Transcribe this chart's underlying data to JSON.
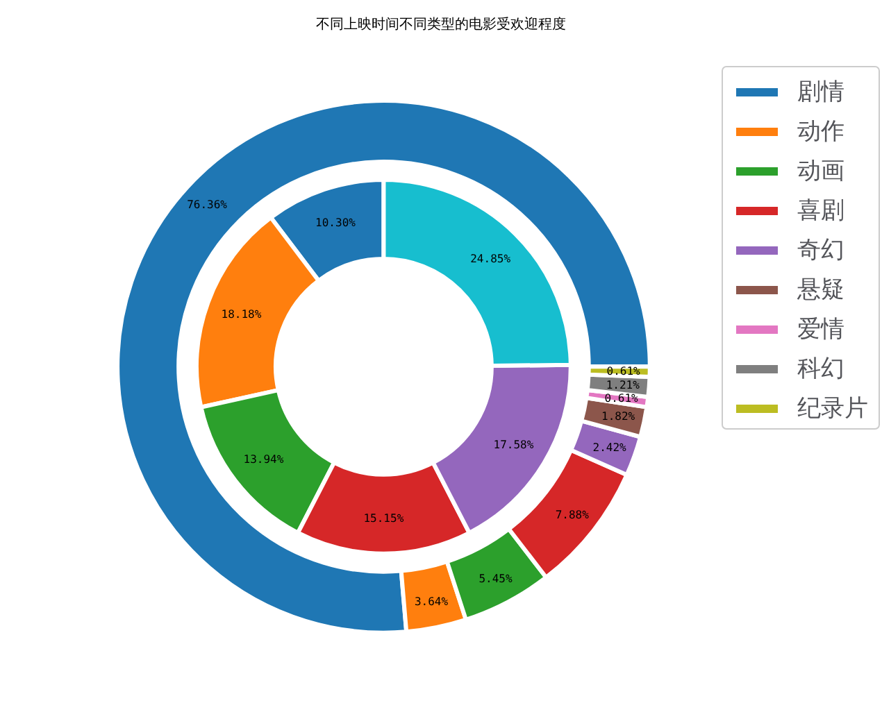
{
  "chart_data": [
    {
      "type": "donut",
      "title": "不同上映时间不同类型的电影受欢迎程度",
      "legend": "top right",
      "categories": [
        "剧情",
        "动作",
        "动画",
        "喜剧",
        "奇幻",
        "悬疑",
        "爱情",
        "科幻",
        "纪录片"
      ],
      "values": [
        76.36,
        3.64,
        5.45,
        7.88,
        2.42,
        1.82,
        0.61,
        1.21,
        0.61
      ],
      "colors": [
        "#1f77b4",
        "#ff7f0e",
        "#2ca02c",
        "#d62728",
        "#9467bd",
        "#8c564b",
        "#e377c2",
        "#7f7f7f",
        "#bcbd22"
      ],
      "value_labels": [
        "76.36%",
        "3.64%",
        "5.45%",
        "7.88%",
        "2.42%",
        "1.82%",
        "0.61%",
        "1.21%",
        "0.61%"
      ]
    },
    {
      "type": "donut",
      "categories": [
        null,
        null,
        null,
        null,
        null,
        null
      ],
      "values": [
        10.3,
        18.18,
        13.94,
        15.15,
        17.58,
        24.85
      ],
      "colors": [
        "#1f77b4",
        "#ff7f0e",
        "#2ca02c",
        "#d62728",
        "#9467bd",
        "#17becf"
      ],
      "value_labels": [
        "10.30%",
        "18.18%",
        "13.94%",
        "15.15%",
        "17.58%",
        "24.85%"
      ]
    }
  ]
}
